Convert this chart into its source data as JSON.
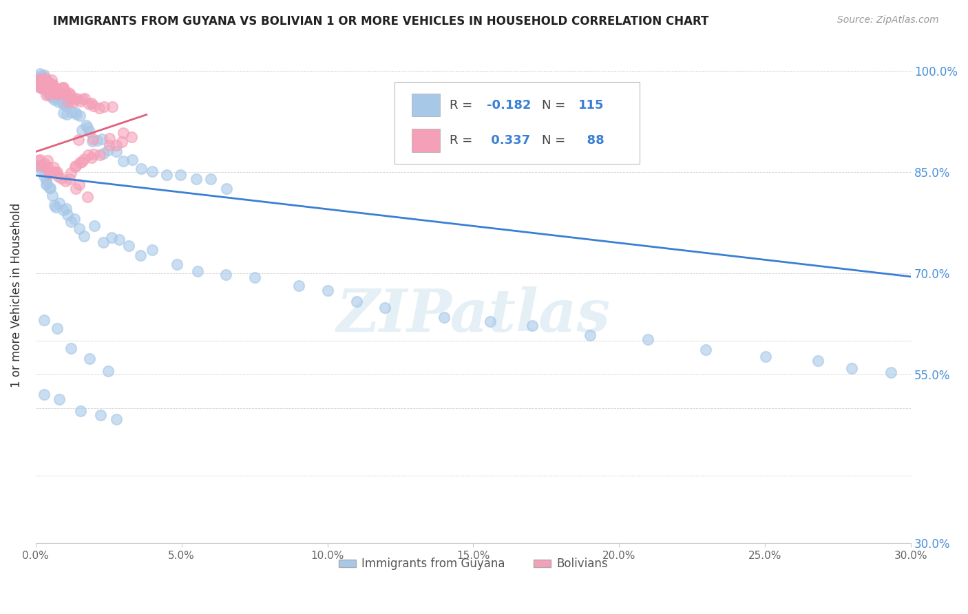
{
  "title": "IMMIGRANTS FROM GUYANA VS BOLIVIAN 1 OR MORE VEHICLES IN HOUSEHOLD CORRELATION CHART",
  "source": "Source: ZipAtlas.com",
  "ylabel": "1 or more Vehicles in Household",
  "xlim": [
    0.0,
    0.3
  ],
  "ylim": [
    0.3,
    1.035
  ],
  "guyana_color": "#a8c8e8",
  "bolivia_color": "#f4a0b8",
  "guyana_line_color": "#3a7fd4",
  "bolivia_line_color": "#e0607a",
  "R_guyana": -0.182,
  "N_guyana": 115,
  "R_bolivia": 0.337,
  "N_bolivia": 88,
  "guyana_line_x0": 0.0,
  "guyana_line_y0": 0.845,
  "guyana_line_x1": 0.3,
  "guyana_line_y1": 0.695,
  "bolivia_line_x0": 0.0,
  "bolivia_line_y0": 0.88,
  "bolivia_line_x1": 0.038,
  "bolivia_line_y1": 0.935,
  "watermark_text": "ZIPatlas",
  "legend_labels": [
    "Immigrants from Guyana",
    "Bolivians"
  ],
  "right_ytick_labels": [
    "100.0%",
    "85.0%",
    "70.0%",
    "55.0%",
    "30.0%"
  ],
  "right_ytick_vals": [
    1.0,
    0.85,
    0.7,
    0.55,
    0.3
  ],
  "ytick_vals": [
    0.3,
    0.4,
    0.5,
    0.55,
    0.6,
    0.7,
    0.85,
    1.0
  ],
  "xtick_vals": [
    0.0,
    0.05,
    0.1,
    0.15,
    0.2,
    0.25,
    0.3
  ],
  "guyana_x": [
    0.001,
    0.001,
    0.001,
    0.001,
    0.001,
    0.002,
    0.002,
    0.002,
    0.002,
    0.002,
    0.003,
    0.003,
    0.003,
    0.003,
    0.004,
    0.004,
    0.004,
    0.004,
    0.005,
    0.005,
    0.005,
    0.005,
    0.006,
    0.006,
    0.006,
    0.007,
    0.007,
    0.007,
    0.008,
    0.008,
    0.009,
    0.009,
    0.01,
    0.01,
    0.01,
    0.011,
    0.011,
    0.012,
    0.013,
    0.014,
    0.015,
    0.016,
    0.017,
    0.018,
    0.019,
    0.02,
    0.021,
    0.022,
    0.023,
    0.025,
    0.027,
    0.03,
    0.033,
    0.036,
    0.04,
    0.045,
    0.05,
    0.055,
    0.06,
    0.065,
    0.001,
    0.002,
    0.002,
    0.003,
    0.003,
    0.004,
    0.004,
    0.005,
    0.005,
    0.006,
    0.006,
    0.007,
    0.008,
    0.009,
    0.01,
    0.011,
    0.012,
    0.013,
    0.015,
    0.017,
    0.02,
    0.023,
    0.026,
    0.029,
    0.032,
    0.036,
    0.04,
    0.048,
    0.055,
    0.065,
    0.075,
    0.09,
    0.1,
    0.11,
    0.12,
    0.14,
    0.155,
    0.17,
    0.19,
    0.21,
    0.23,
    0.25,
    0.268,
    0.28,
    0.293,
    0.003,
    0.007,
    0.012,
    0.018,
    0.025,
    0.003,
    0.008,
    0.015,
    0.022,
    0.028
  ],
  "guyana_y": [
    0.995,
    0.99,
    0.985,
    0.98,
    0.975,
    0.995,
    0.99,
    0.985,
    0.98,
    0.975,
    0.99,
    0.985,
    0.98,
    0.975,
    0.985,
    0.98,
    0.975,
    0.97,
    0.98,
    0.975,
    0.97,
    0.965,
    0.975,
    0.97,
    0.965,
    0.97,
    0.965,
    0.96,
    0.965,
    0.96,
    0.96,
    0.955,
    0.955,
    0.95,
    0.945,
    0.95,
    0.945,
    0.94,
    0.935,
    0.93,
    0.925,
    0.92,
    0.915,
    0.91,
    0.905,
    0.9,
    0.895,
    0.89,
    0.885,
    0.88,
    0.875,
    0.87,
    0.865,
    0.86,
    0.855,
    0.85,
    0.845,
    0.84,
    0.835,
    0.83,
    0.86,
    0.855,
    0.85,
    0.845,
    0.84,
    0.835,
    0.83,
    0.825,
    0.82,
    0.815,
    0.81,
    0.805,
    0.8,
    0.795,
    0.79,
    0.785,
    0.78,
    0.775,
    0.77,
    0.765,
    0.76,
    0.755,
    0.75,
    0.745,
    0.74,
    0.735,
    0.73,
    0.72,
    0.71,
    0.7,
    0.69,
    0.68,
    0.67,
    0.66,
    0.65,
    0.64,
    0.63,
    0.62,
    0.61,
    0.6,
    0.59,
    0.58,
    0.57,
    0.56,
    0.55,
    0.63,
    0.61,
    0.59,
    0.575,
    0.56,
    0.52,
    0.51,
    0.5,
    0.49,
    0.48
  ],
  "bolivia_x": [
    0.001,
    0.001,
    0.001,
    0.001,
    0.002,
    0.002,
    0.002,
    0.002,
    0.003,
    0.003,
    0.003,
    0.003,
    0.004,
    0.004,
    0.004,
    0.004,
    0.005,
    0.005,
    0.005,
    0.005,
    0.006,
    0.006,
    0.006,
    0.007,
    0.007,
    0.007,
    0.008,
    0.008,
    0.008,
    0.009,
    0.009,
    0.01,
    0.01,
    0.01,
    0.011,
    0.011,
    0.012,
    0.012,
    0.013,
    0.013,
    0.014,
    0.015,
    0.016,
    0.017,
    0.018,
    0.019,
    0.02,
    0.022,
    0.024,
    0.026,
    0.001,
    0.002,
    0.002,
    0.003,
    0.003,
    0.004,
    0.004,
    0.005,
    0.005,
    0.006,
    0.006,
    0.007,
    0.007,
    0.008,
    0.009,
    0.01,
    0.011,
    0.012,
    0.013,
    0.014,
    0.015,
    0.016,
    0.017,
    0.018,
    0.019,
    0.02,
    0.022,
    0.025,
    0.028,
    0.03,
    0.015,
    0.02,
    0.025,
    0.03,
    0.033,
    0.015,
    0.013,
    0.018
  ],
  "bolivia_y": [
    0.99,
    0.985,
    0.98,
    0.975,
    0.99,
    0.985,
    0.98,
    0.975,
    0.99,
    0.985,
    0.98,
    0.975,
    0.985,
    0.98,
    0.975,
    0.97,
    0.985,
    0.98,
    0.975,
    0.97,
    0.98,
    0.975,
    0.97,
    0.978,
    0.973,
    0.968,
    0.975,
    0.97,
    0.965,
    0.972,
    0.967,
    0.97,
    0.965,
    0.96,
    0.968,
    0.963,
    0.965,
    0.96,
    0.963,
    0.958,
    0.96,
    0.958,
    0.956,
    0.955,
    0.953,
    0.951,
    0.95,
    0.948,
    0.946,
    0.945,
    0.87,
    0.868,
    0.866,
    0.864,
    0.862,
    0.86,
    0.858,
    0.856,
    0.854,
    0.852,
    0.85,
    0.848,
    0.846,
    0.844,
    0.842,
    0.84,
    0.852,
    0.855,
    0.858,
    0.86,
    0.863,
    0.866,
    0.869,
    0.872,
    0.875,
    0.878,
    0.882,
    0.886,
    0.89,
    0.893,
    0.892,
    0.895,
    0.9,
    0.905,
    0.908,
    0.83,
    0.825,
    0.82
  ]
}
